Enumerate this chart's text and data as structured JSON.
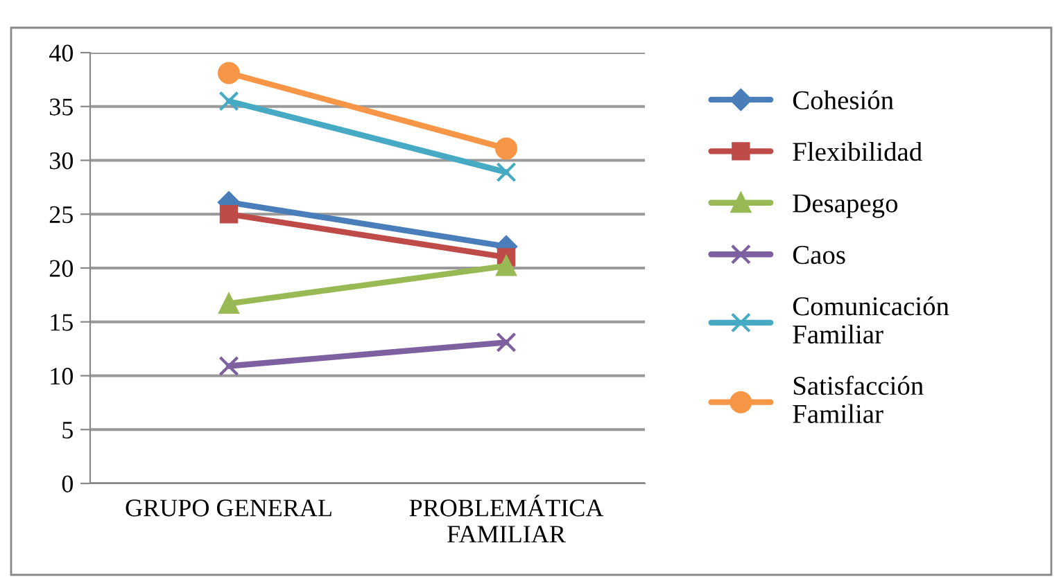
{
  "chart_data": {
    "type": "line",
    "categories": [
      "GRUPO GENERAL",
      "PROBLEMÁTICA FAMILIAR"
    ],
    "ylim": [
      0,
      40
    ],
    "yticks": [
      0,
      5,
      10,
      15,
      20,
      25,
      30,
      35,
      40
    ],
    "grid": "y",
    "legend": "right",
    "series": [
      {
        "name": "Cohesión",
        "color": "#4a7ebb",
        "marker": "diamond",
        "values": [
          26.1,
          22.0
        ]
      },
      {
        "name": "Flexibilidad",
        "color": "#be4b48",
        "marker": "square",
        "values": [
          25.0,
          21.0
        ]
      },
      {
        "name": "Desapego",
        "color": "#98b954",
        "marker": "triangle",
        "values": [
          16.7,
          20.2
        ]
      },
      {
        "name": "Caos",
        "color": "#7d60a0",
        "marker": "cross",
        "values": [
          10.9,
          13.1
        ]
      },
      {
        "name": "Comunicación Familiar",
        "color": "#46aac5",
        "marker": "cross",
        "values": [
          35.5,
          28.9
        ]
      },
      {
        "name": "Satisfacción Familiar",
        "color": "#f79646",
        "marker": "circle",
        "values": [
          38.1,
          31.1
        ]
      }
    ]
  }
}
